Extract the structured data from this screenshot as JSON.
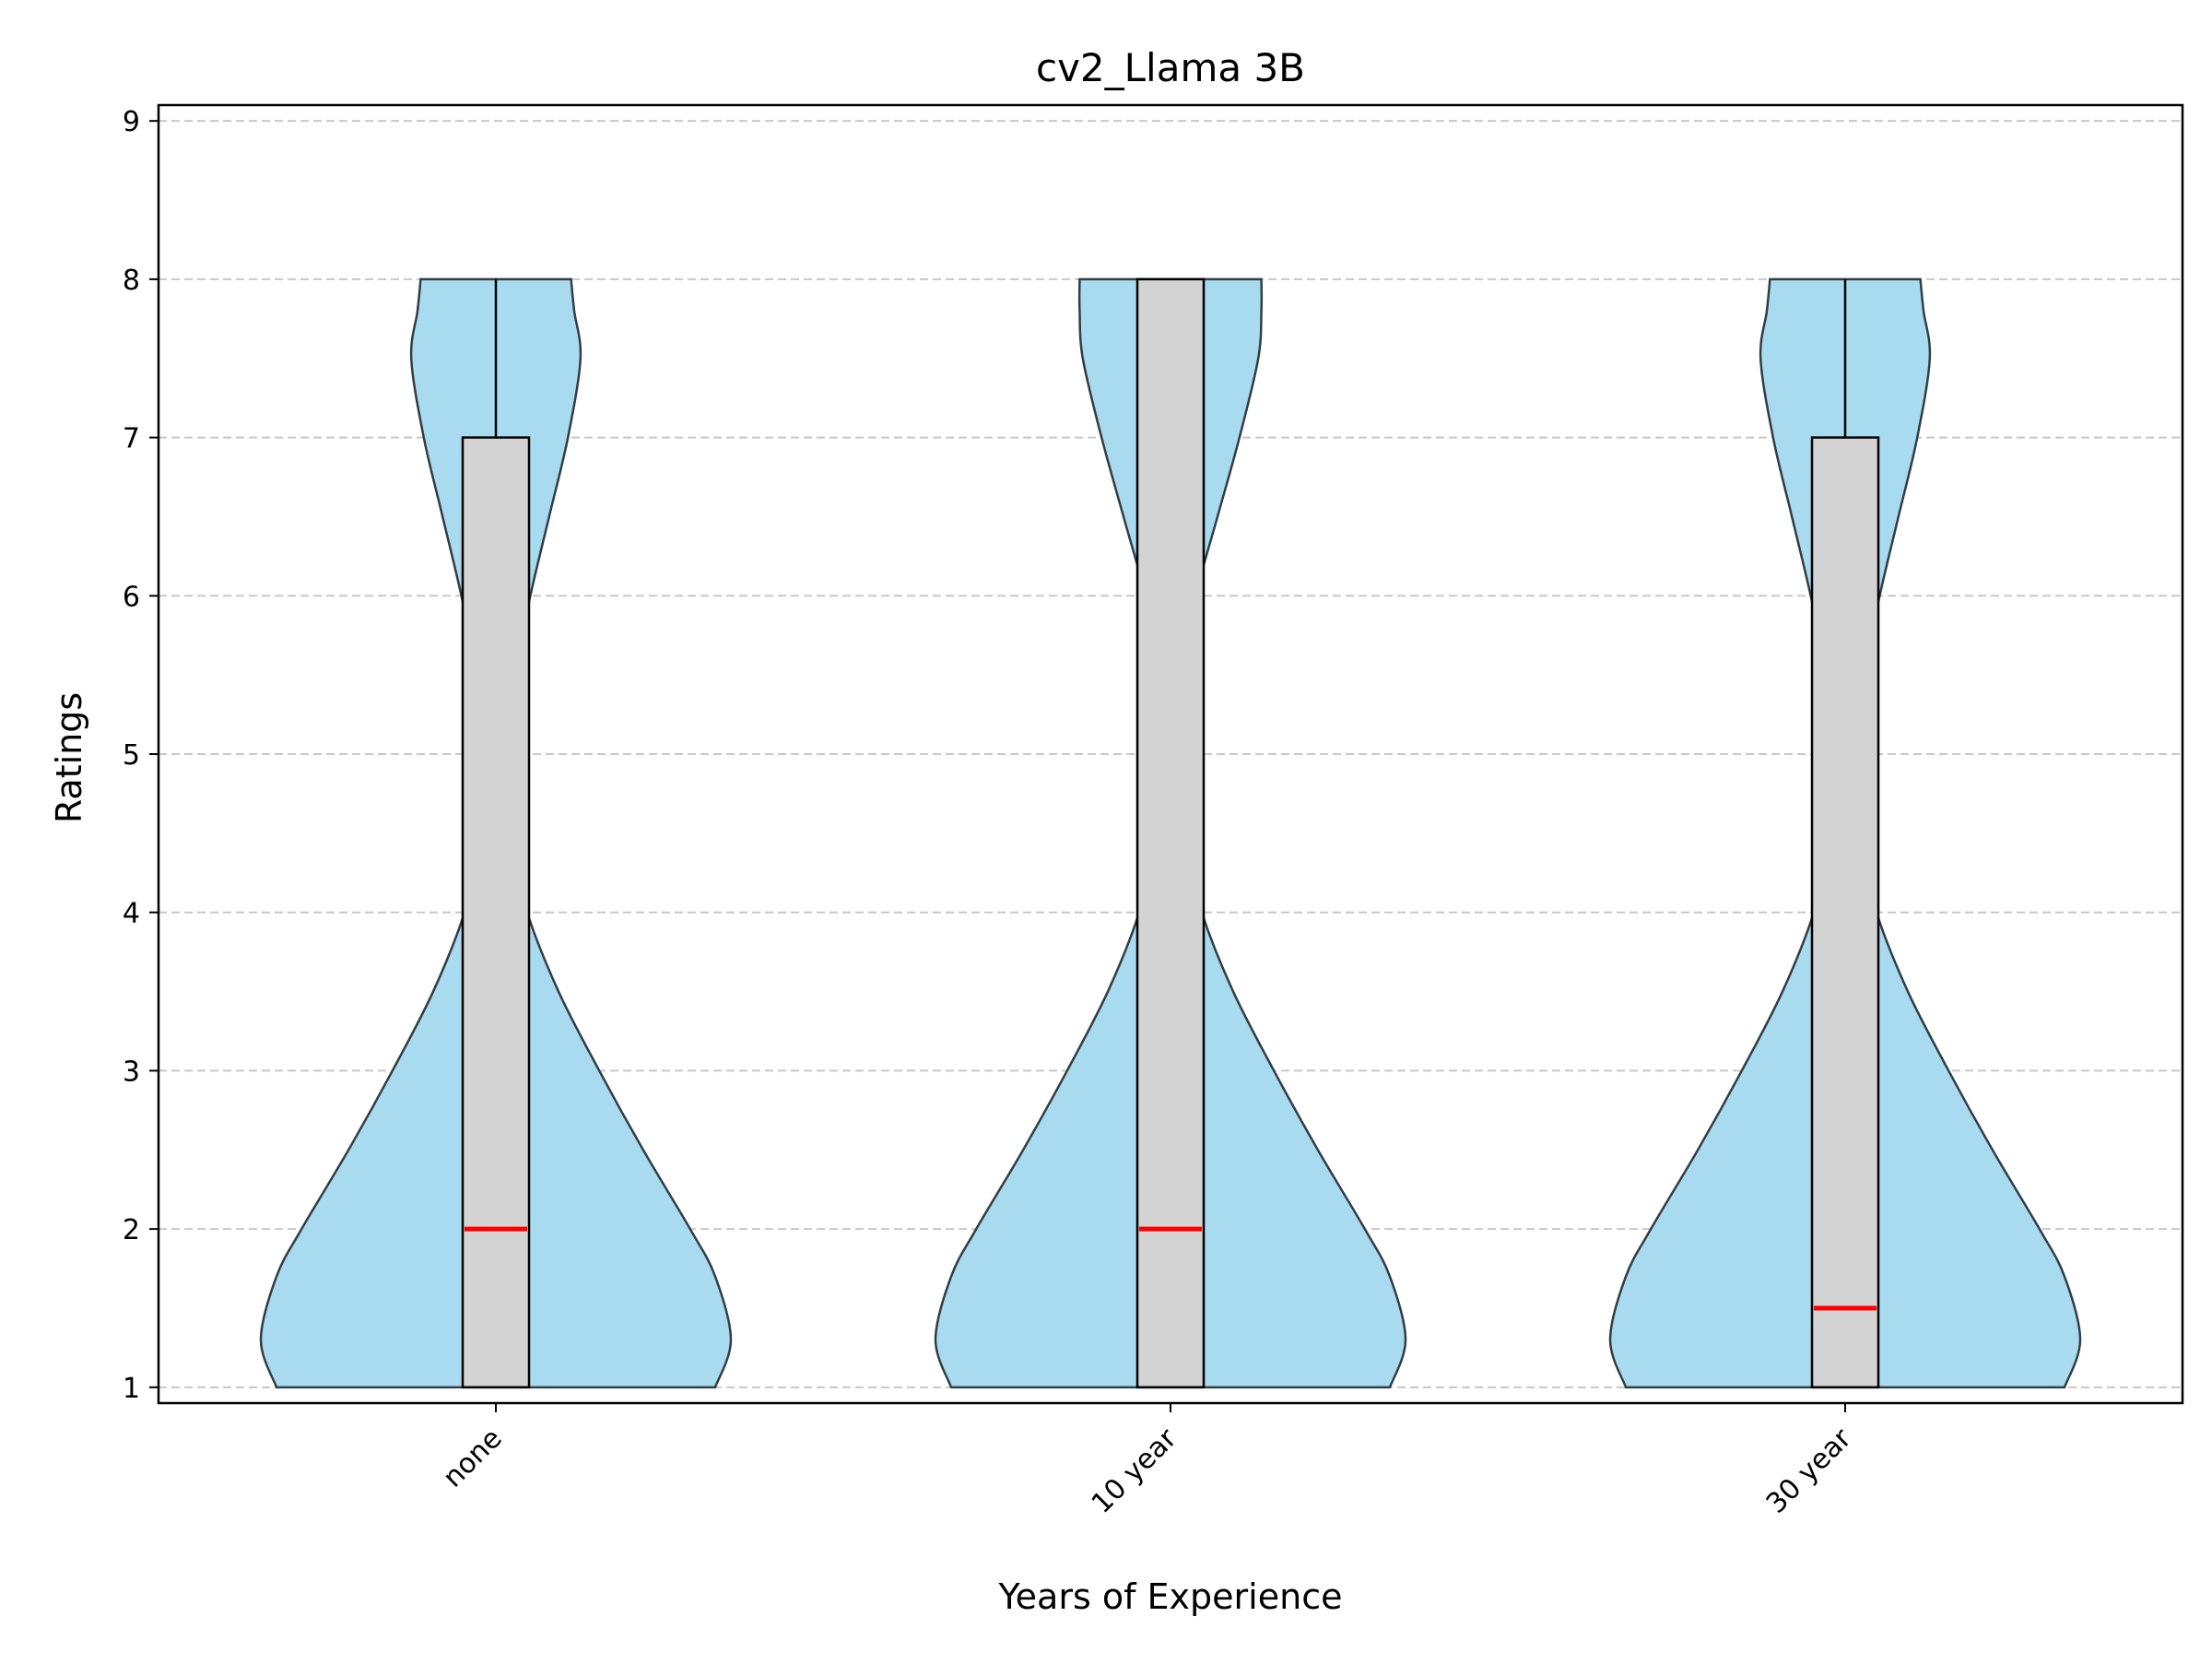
{
  "chart_data": {
    "type": "violin",
    "title": "cv2_Llama 3B",
    "xlabel": "Years of Experience",
    "ylabel": "Ratings",
    "categories": [
      "none",
      "10 year",
      "30 year"
    ],
    "ylim": [
      0.9,
      9.1
    ],
    "yticks": [
      1,
      2,
      3,
      4,
      5,
      6,
      7,
      8,
      9
    ],
    "grid": "y-dashed",
    "colors": {
      "violin_fill": "#a8dbef",
      "violin_edge": "#333d44",
      "box_fill": "#d3d3d3",
      "box_edge": "#000000",
      "median": "#ff0000",
      "grid": "#c8c8c8"
    },
    "boxes": [
      {
        "category": "none",
        "min": 1,
        "q1": 1,
        "median": 2,
        "q3": 7,
        "max": 8
      },
      {
        "category": "10 year",
        "min": 1,
        "q1": 1,
        "median": 2,
        "q3": 8,
        "max": 8
      },
      {
        "category": "30 year",
        "min": 1,
        "q1": 1,
        "median": 1.5,
        "q3": 7,
        "max": 8
      }
    ],
    "violins": [
      {
        "category": "none",
        "profile": [
          [
            1.0,
            0.7
          ],
          [
            1.3,
            0.75
          ],
          [
            1.7,
            0.7
          ],
          [
            2.0,
            0.62
          ],
          [
            2.5,
            0.47
          ],
          [
            3.0,
            0.33
          ],
          [
            3.5,
            0.2
          ],
          [
            4.0,
            0.1
          ],
          [
            4.5,
            0.04
          ],
          [
            5.0,
            0.035
          ],
          [
            5.5,
            0.06
          ],
          [
            6.0,
            0.11
          ],
          [
            6.5,
            0.17
          ],
          [
            7.0,
            0.23
          ],
          [
            7.5,
            0.27
          ],
          [
            7.8,
            0.25
          ],
          [
            8.0,
            0.24
          ]
        ]
      },
      {
        "category": "10 year",
        "profile": [
          [
            1.0,
            0.7
          ],
          [
            1.3,
            0.75
          ],
          [
            1.7,
            0.7
          ],
          [
            2.0,
            0.62
          ],
          [
            2.5,
            0.47
          ],
          [
            3.0,
            0.33
          ],
          [
            3.5,
            0.2
          ],
          [
            4.0,
            0.1
          ],
          [
            4.5,
            0.04
          ],
          [
            5.0,
            0.025
          ],
          [
            5.5,
            0.03
          ],
          [
            6.0,
            0.08
          ],
          [
            6.5,
            0.15
          ],
          [
            7.0,
            0.22
          ],
          [
            7.5,
            0.28
          ],
          [
            7.8,
            0.29
          ],
          [
            8.0,
            0.29
          ]
        ]
      },
      {
        "category": "30 year",
        "profile": [
          [
            1.0,
            0.7
          ],
          [
            1.3,
            0.75
          ],
          [
            1.7,
            0.7
          ],
          [
            2.0,
            0.62
          ],
          [
            2.5,
            0.47
          ],
          [
            3.0,
            0.33
          ],
          [
            3.5,
            0.2
          ],
          [
            4.0,
            0.1
          ],
          [
            4.5,
            0.04
          ],
          [
            5.0,
            0.035
          ],
          [
            5.5,
            0.06
          ],
          [
            6.0,
            0.11
          ],
          [
            6.5,
            0.17
          ],
          [
            7.0,
            0.23
          ],
          [
            7.5,
            0.27
          ],
          [
            7.8,
            0.25
          ],
          [
            8.0,
            0.24
          ]
        ]
      }
    ]
  }
}
